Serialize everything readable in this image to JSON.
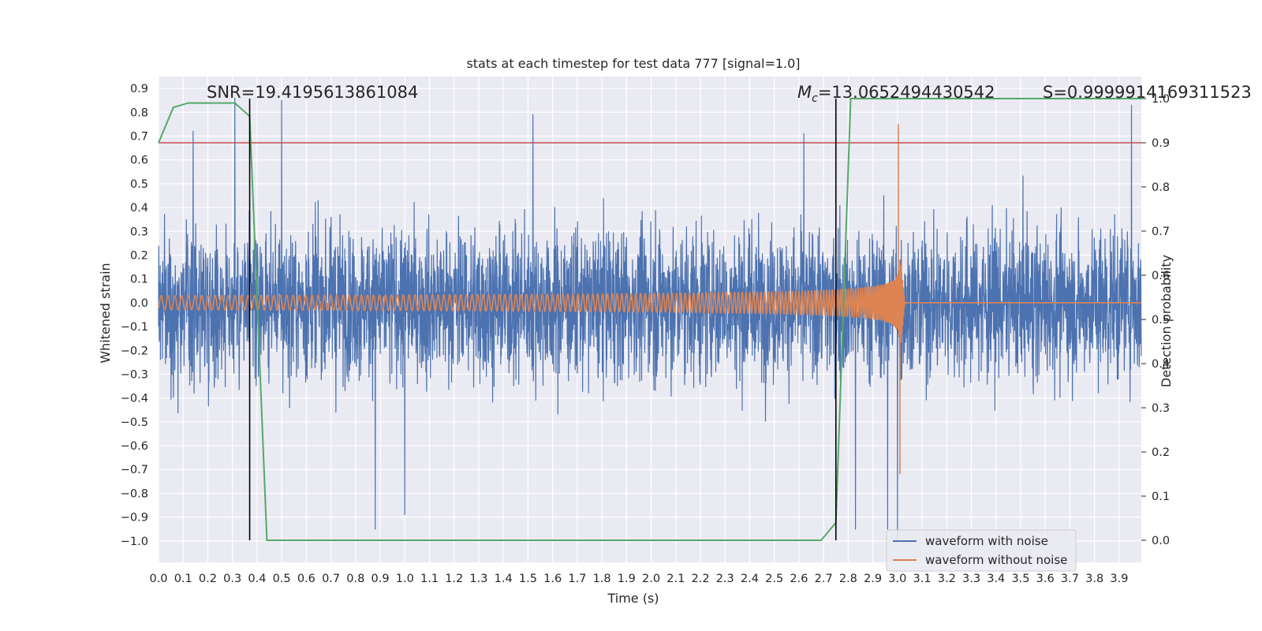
{
  "chart_data": {
    "type": "line",
    "title": "stats at each timestep for test data 777 [signal=1.0]",
    "xlabel": "Time (s)",
    "ylabel": "Whitened strain",
    "y2label": "Detection probability",
    "xlim": [
      0.0,
      3.99
    ],
    "ylim": [
      -1.09,
      0.95
    ],
    "y2lim": [
      -0.05,
      1.05
    ],
    "x_ticks": [
      "0.0",
      "0.1",
      "0.2",
      "0.3",
      "0.4",
      "0.5",
      "0.6",
      "0.7",
      "0.8",
      "0.9",
      "1.0",
      "1.1",
      "1.2",
      "1.3",
      "1.4",
      "1.5",
      "1.6",
      "1.7",
      "1.8",
      "1.9",
      "2.0",
      "2.1",
      "2.2",
      "2.3",
      "2.4",
      "2.5",
      "2.6",
      "2.7",
      "2.8",
      "2.9",
      "3.0",
      "3.1",
      "3.2",
      "3.3",
      "3.4",
      "3.5",
      "3.6",
      "3.7",
      "3.8",
      "3.9"
    ],
    "y_ticks": [
      "0.9",
      "0.8",
      "0.7",
      "0.6",
      "0.5",
      "0.4",
      "0.3",
      "0.2",
      "0.1",
      "0.0",
      "−0.1",
      "−0.2",
      "−0.3",
      "−0.4",
      "−0.5",
      "−0.6",
      "−0.7",
      "−0.8",
      "−0.9",
      "−1.0"
    ],
    "y2_ticks": [
      "1.0",
      "0.9",
      "0.8",
      "0.7",
      "0.6",
      "0.5",
      "0.4",
      "0.3",
      "0.2",
      "0.1",
      "0.0"
    ],
    "grid": true,
    "legend_position": "lower-right",
    "annotations": {
      "snr": "SNR=19.4195613861084",
      "mc_symbol": "M",
      "mc_sub": "c",
      "mc_value": "=13.0652494430542",
      "s": "S=0.9999914169311523"
    },
    "threshold": 0.9,
    "vlines": [
      0.37,
      2.75
    ],
    "series": [
      {
        "name": "waveform with noise",
        "color": "#4c72b0",
        "axis": "left",
        "amplitude_envelope": 0.3,
        "peaks": [
          {
            "x": 0.14,
            "y": 0.72
          },
          {
            "x": 0.31,
            "y": 0.86
          },
          {
            "x": 0.5,
            "y": 0.85
          },
          {
            "x": 0.88,
            "y": -0.95
          },
          {
            "x": 1.0,
            "y": -0.89
          },
          {
            "x": 1.52,
            "y": 0.79
          },
          {
            "x": 2.62,
            "y": 0.71
          },
          {
            "x": 2.83,
            "y": -0.95
          },
          {
            "x": 2.96,
            "y": -0.95
          },
          {
            "x": 3.0,
            "y": -1.0
          },
          {
            "x": 3.95,
            "y": 0.83
          }
        ]
      },
      {
        "name": "waveform without noise",
        "color": "#dd8452",
        "axis": "left",
        "merger_time": 3.0,
        "start_amplitude": 0.03,
        "peak_amplitude": 0.75,
        "min_amplitude": -0.72
      },
      {
        "name": "detection probability",
        "color": "#55a868",
        "axis": "right",
        "x": [
          0.0,
          0.06,
          0.12,
          0.19,
          0.25,
          0.31,
          0.37,
          0.44,
          0.5,
          0.56,
          2.62,
          2.69,
          2.75,
          2.81,
          2.87,
          3.99
        ],
        "values": [
          0.9,
          0.98,
          0.99,
          0.99,
          0.99,
          0.99,
          0.96,
          0.0,
          0.0,
          0.0,
          0.0,
          0.0,
          0.04,
          1.0,
          1.0,
          1.0
        ]
      }
    ]
  }
}
